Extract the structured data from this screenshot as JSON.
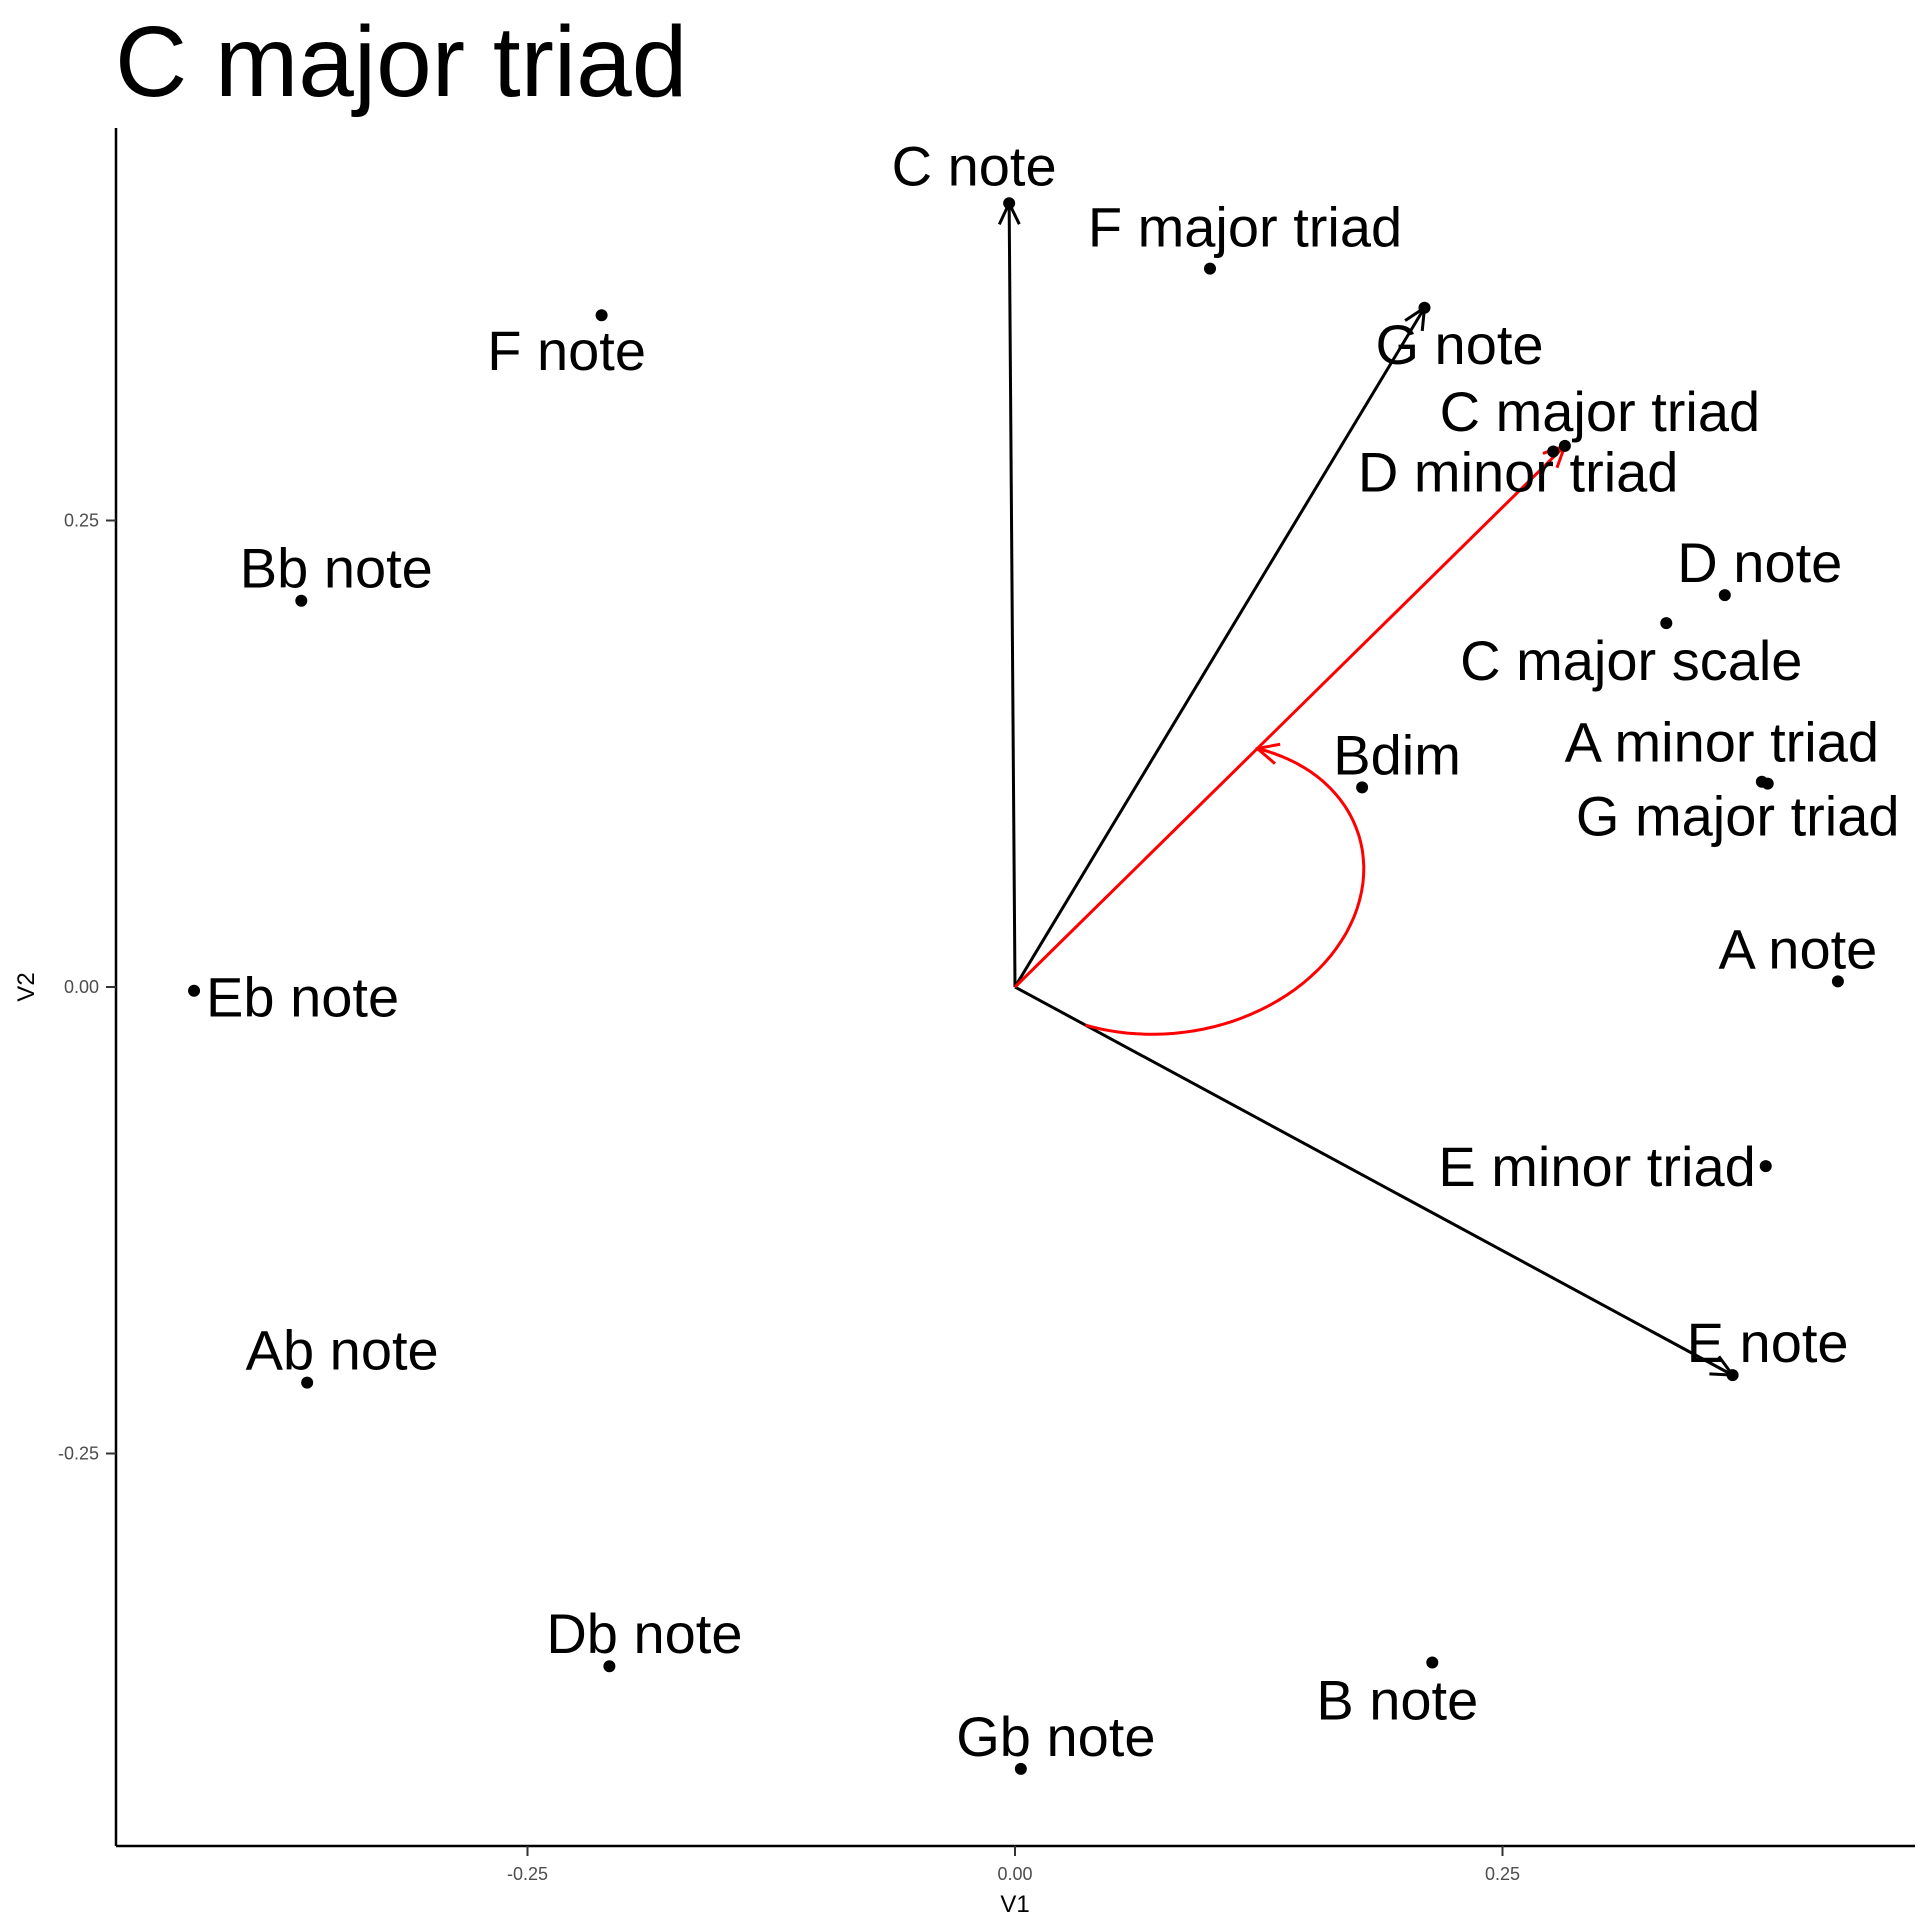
{
  "chart_data": {
    "type": "scatter",
    "title": "C major triad",
    "xlabel": "V1",
    "ylabel": "V2",
    "xlim": [
      -0.465,
      0.465
    ],
    "ylim": [
      -0.46,
      0.46
    ],
    "x_ticks": [
      -0.25,
      0.0,
      0.25
    ],
    "y_ticks": [
      -0.25,
      0.0,
      0.25
    ],
    "x_tick_labels": [
      "-0.25",
      "0.00",
      "0.25"
    ],
    "y_tick_labels": [
      "-0.25",
      "0.00",
      "0.25"
    ],
    "grid": false,
    "legend": "none",
    "points": [
      {
        "label": "C note",
        "x": -0.003,
        "y": 0.42
      },
      {
        "label": "F major triad",
        "x": 0.1,
        "y": 0.385
      },
      {
        "label": "F note",
        "x": -0.212,
        "y": 0.36
      },
      {
        "label": "G note",
        "x": 0.21,
        "y": 0.364
      },
      {
        "label": "C major triad",
        "x": 0.282,
        "y": 0.29
      },
      {
        "label": "D minor triad",
        "x": 0.276,
        "y": 0.287
      },
      {
        "label": "D note",
        "x": 0.364,
        "y": 0.21
      },
      {
        "label": "C major scale",
        "x": 0.334,
        "y": 0.195
      },
      {
        "label": "Bb note",
        "x": -0.366,
        "y": 0.207
      },
      {
        "label": "Bdim",
        "x": 0.178,
        "y": 0.107
      },
      {
        "label": "A minor triad",
        "x": 0.383,
        "y": 0.11
      },
      {
        "label": "G major triad",
        "x": 0.386,
        "y": 0.109
      },
      {
        "label": "A note",
        "x": 0.422,
        "y": 0.003
      },
      {
        "label": "Eb note",
        "x": -0.421,
        "y": -0.002
      },
      {
        "label": "E minor triad",
        "x": 0.385,
        "y": -0.096
      },
      {
        "label": "E note",
        "x": 0.368,
        "y": -0.208
      },
      {
        "label": "Ab note",
        "x": -0.363,
        "y": -0.212
      },
      {
        "label": "Db note",
        "x": -0.208,
        "y": -0.364
      },
      {
        "label": "B note",
        "x": 0.214,
        "y": -0.362
      },
      {
        "label": "Gb note",
        "x": 0.003,
        "y": -0.419
      }
    ],
    "arrows": [
      {
        "from": "origin",
        "to": "C note",
        "color": "#000000",
        "x": -0.003,
        "y": 0.42
      },
      {
        "from": "origin",
        "to": "G note",
        "color": "#000000",
        "x": 0.21,
        "y": 0.364
      },
      {
        "from": "origin",
        "to": "E note",
        "color": "#000000",
        "x": 0.368,
        "y": -0.208
      },
      {
        "from": "origin",
        "to": "C major triad",
        "color": "#ff0000",
        "x": 0.282,
        "y": 0.29
      }
    ],
    "angle_arc": {
      "color": "#ff0000",
      "from_point": "E note",
      "to": "C major triad"
    }
  }
}
